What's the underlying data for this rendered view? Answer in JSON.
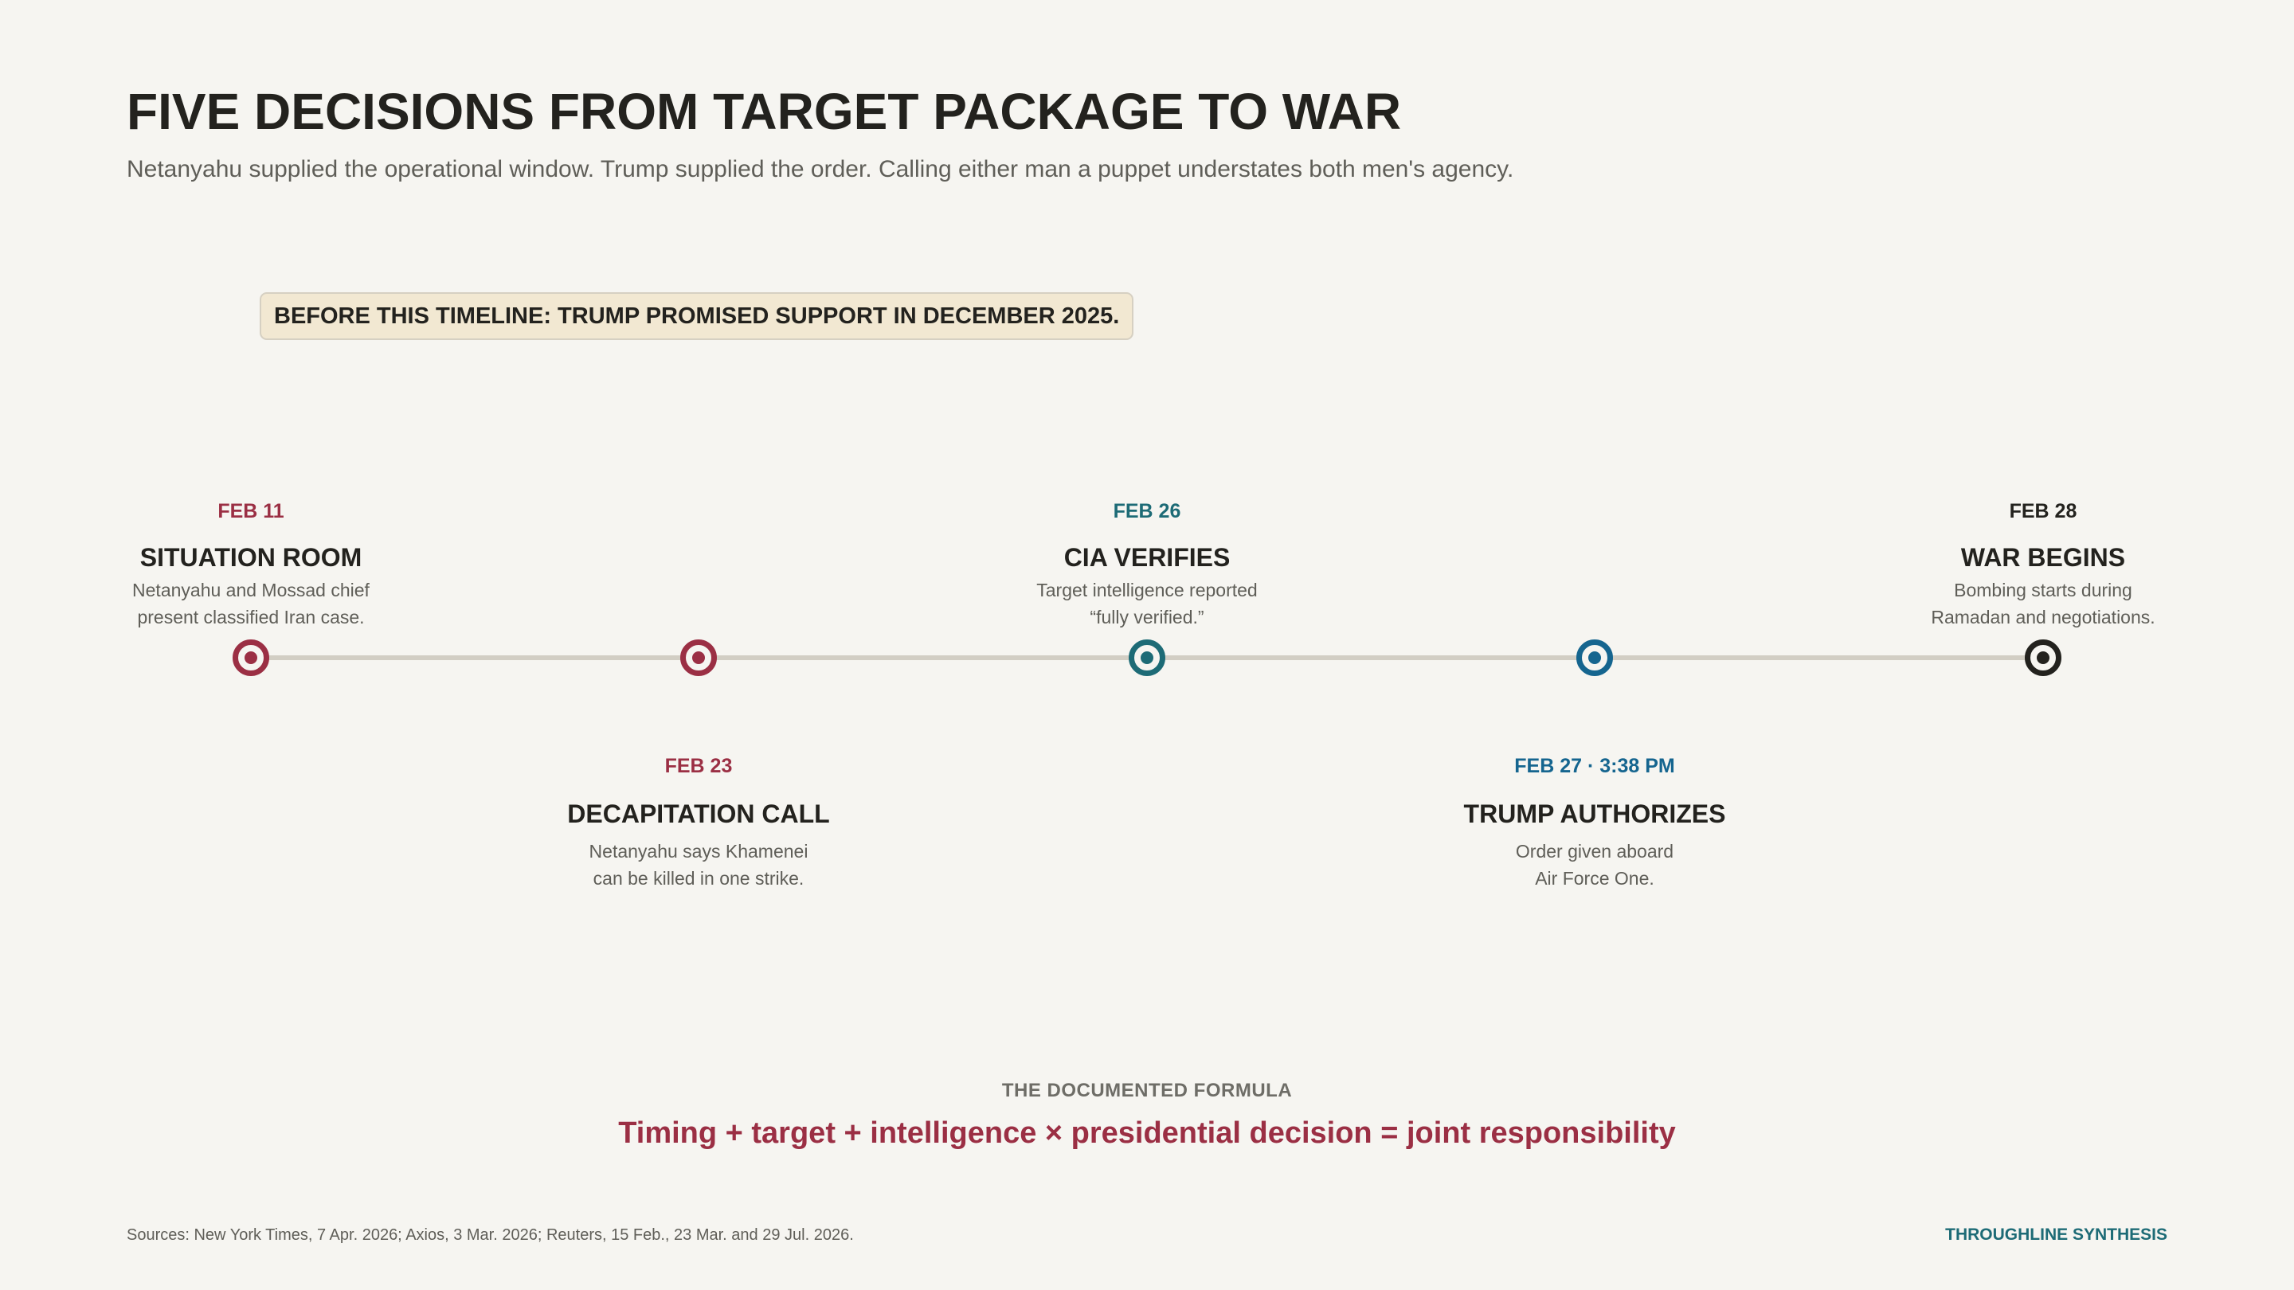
{
  "header": {
    "title": "FIVE DECISIONS FROM TARGET PACKAGE TO WAR",
    "subtitle": "Netanyahu supplied the operational window. Trump supplied the order. Calling either man a puppet understates both men's agency."
  },
  "context": {
    "label": "BEFORE THIS TIMELINE: TRUMP PROMISED SUPPORT IN DECEMBER 2025."
  },
  "events": [
    {
      "date": "FEB 11",
      "name": "SITUATION ROOM",
      "desc_line1": "Netanyahu and Mossad chief",
      "desc_line2": "present classified Iran case.",
      "color": "#9b2f44"
    },
    {
      "date": "FEB 23",
      "name": "DECAPITATION CALL",
      "desc_line1": "Netanyahu says Khamenei",
      "desc_line2": "can be killed in one strike.",
      "color": "#9b2f44"
    },
    {
      "date": "FEB 26",
      "name": "CIA VERIFIES",
      "desc_line1": "Target intelligence reported",
      "desc_line2": "“fully verified.”",
      "color": "#1d6b76"
    },
    {
      "date": "FEB 27 · 3:38 PM",
      "name": "TRUMP AUTHORIZES",
      "desc_line1": "Order given aboard",
      "desc_line2": "Air Force One.",
      "color": "#15658f"
    },
    {
      "date": "FEB 28",
      "name": "WAR BEGINS",
      "desc_line1": "Bombing starts during",
      "desc_line2": "Ramadan and negotiations.",
      "color": "#23221e"
    }
  ],
  "formula": {
    "label": "THE DOCUMENTED FORMULA",
    "text": "Timing + target + intelligence  ×  presidential decision  =  joint responsibility"
  },
  "footer": {
    "sources": "Sources: New York Times, 7 Apr. 2026; Axios, 3 Mar. 2026; Reuters, 15 Feb., 23 Mar. and 29 Jul. 2026.",
    "brand": "THROUGHLINE SYNTHESIS"
  }
}
